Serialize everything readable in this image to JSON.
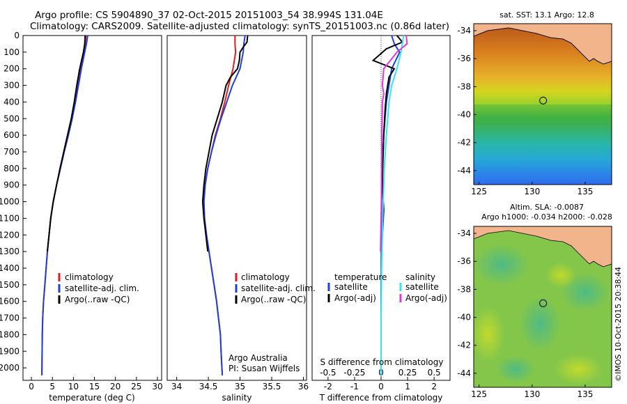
{
  "header": {
    "title_line1": "Argo profile: CS 5904890_37 02-Oct-2015 20151003_54 38.994S 131.04E",
    "title_line2": "Climatology: CARS2009. Satellite-adjusted climatology: synTS_20151003.nc (0.86d later)"
  },
  "credit": "©IMOS 10-Oct-2015 20:38:44",
  "colors": {
    "climatology": "#e41a1c",
    "satellite": "#1f3fd6",
    "argo": "#000000",
    "sat_temp": "#1f3fd6",
    "sat_sal": "#33e6f2",
    "argo_sal_adj": "#e733e0",
    "land": "#f2b48a"
  },
  "chart_data": [
    {
      "type": "line",
      "id": "temperature",
      "xlabel": "temperature (deg C)",
      "ylabel": "",
      "xlim": [
        -2,
        31
      ],
      "ylim": [
        2075,
        0
      ],
      "xticks": [
        "0",
        "5",
        "10",
        "15",
        "20",
        "25",
        "30"
      ],
      "yticks": [
        "0",
        "100",
        "200",
        "300",
        "400",
        "500",
        "600",
        "700",
        "800",
        "900",
        "1000",
        "1100",
        "1200",
        "1300",
        "1400",
        "1500",
        "1600",
        "1700",
        "1800",
        "1900",
        "2000"
      ],
      "legend": [
        "climatology",
        "satellite-adj. clim.",
        "Argo(..raw -QC)"
      ],
      "series": [
        {
          "name": "climatology",
          "color_key": "climatology",
          "x": [
            13.0,
            12.8,
            12.4,
            11.6,
            11.0,
            10.4,
            9.7,
            8.8,
            7.8,
            6.9,
            6.0,
            5.2,
            4.6,
            4.2,
            3.8,
            3.5,
            3.2,
            2.9,
            2.7,
            2.6,
            2.5
          ],
          "y": [
            0,
            50,
            100,
            200,
            300,
            400,
            500,
            600,
            700,
            800,
            900,
            1000,
            1100,
            1200,
            1300,
            1400,
            1500,
            1600,
            1700,
            1800,
            2045
          ]
        },
        {
          "name": "satellite-adj. clim.",
          "color_key": "satellite",
          "x": [
            13.4,
            13.1,
            12.7,
            11.9,
            11.2,
            10.5,
            9.7,
            8.8,
            7.8,
            6.9,
            6.0,
            5.2,
            4.6,
            4.2,
            3.8,
            3.5,
            3.2,
            2.9,
            2.7,
            2.6,
            2.5
          ],
          "y": [
            0,
            50,
            100,
            200,
            300,
            400,
            500,
            600,
            700,
            800,
            900,
            1000,
            1100,
            1200,
            1300,
            1400,
            1500,
            1600,
            1700,
            1800,
            2045
          ]
        },
        {
          "name": "Argo(..raw -QC)",
          "color_key": "argo",
          "x": [
            12.8,
            12.7,
            12.4,
            11.5,
            10.8,
            10.2,
            9.5,
            8.6,
            7.7,
            6.8,
            6.0,
            5.2,
            4.6,
            4.2,
            3.8
          ],
          "y": [
            0,
            50,
            100,
            200,
            300,
            400,
            500,
            600,
            700,
            800,
            900,
            1000,
            1100,
            1200,
            1300
          ]
        }
      ]
    },
    {
      "type": "line",
      "id": "salinity",
      "xlabel": "salinity",
      "xlim": [
        33.85,
        36.05
      ],
      "ylim": [
        2075,
        0
      ],
      "xticks": [
        "34",
        "34.5",
        "35",
        "35.5",
        "36"
      ],
      "legend": [
        "climatology",
        "satellite-adj. clim.",
        "Argo(..raw -QC)"
      ],
      "annotation": [
        "Argo Australia",
        "PI: Susan Wijffels"
      ],
      "series": [
        {
          "name": "climatology",
          "color_key": "climatology",
          "x": [
            34.92,
            34.92,
            34.93,
            34.89,
            34.82,
            34.76,
            34.69,
            34.61,
            34.55,
            34.49,
            34.45,
            34.43,
            34.44,
            34.47,
            34.51,
            34.55,
            34.59,
            34.63,
            34.66,
            34.69,
            34.7,
            34.72
          ],
          "y": [
            0,
            50,
            100,
            200,
            300,
            400,
            500,
            600,
            700,
            800,
            900,
            1000,
            1100,
            1200,
            1300,
            1400,
            1500,
            1600,
            1700,
            1800,
            1900,
            2045
          ]
        },
        {
          "name": "satellite-adj. clim.",
          "color_key": "satellite",
          "x": [
            35.08,
            35.06,
            35.05,
            35.0,
            34.88,
            34.79,
            34.7,
            34.62,
            34.55,
            34.49,
            34.45,
            34.43,
            34.44,
            34.47,
            34.51,
            34.55,
            34.59,
            34.63,
            34.66,
            34.69,
            34.7,
            34.72
          ],
          "y": [
            0,
            50,
            100,
            200,
            300,
            400,
            500,
            600,
            700,
            800,
            900,
            1000,
            1100,
            1200,
            1300,
            1400,
            1500,
            1600,
            1700,
            1800,
            1900,
            2045
          ]
        },
        {
          "name": "Argo(..raw -QC)",
          "color_key": "argo",
          "x": [
            35.12,
            35.11,
            35.05,
            35.0,
            34.99,
            34.96,
            34.85,
            34.78,
            34.72,
            34.64,
            34.56,
            34.51,
            34.46,
            34.43,
            34.41,
            34.42,
            34.43,
            34.46,
            34.49
          ],
          "y": [
            0,
            40,
            70,
            100,
            150,
            200,
            250,
            300,
            400,
            500,
            600,
            700,
            800,
            900,
            1000,
            1050,
            1100,
            1200,
            1300
          ]
        }
      ]
    },
    {
      "type": "line",
      "id": "difference",
      "xlabel": "T difference from climatology",
      "top_label": "S difference from climatology",
      "xlim": [
        -2.6,
        2.6
      ],
      "ylim": [
        2075,
        0
      ],
      "xticks": [
        "-2",
        "-1",
        "0",
        "1",
        "2"
      ],
      "secondary_xticks": [
        "-0.5",
        "-0.25",
        "0",
        "0.25",
        "0.5"
      ],
      "legend_left_title": "temperature",
      "legend_left": [
        "satellite",
        "Argo(-adj)"
      ],
      "legend_right_title": "salinity",
      "legend_right": [
        "satellite",
        "Argo(-adj)"
      ],
      "series": [
        {
          "name": "temperature satellite",
          "color_key": "sat_temp",
          "x": [
            0.4,
            0.5,
            0.7,
            0.4,
            0.3,
            0.2,
            0.15,
            0.1,
            0.08,
            0.05,
            0.03,
            0.02,
            0.01,
            0.0,
            0.0
          ],
          "y": [
            0,
            50,
            100,
            200,
            300,
            400,
            500,
            600,
            700,
            800,
            900,
            1000,
            1200,
            1600,
            2045
          ]
        },
        {
          "name": "temperature Argo(-adj)",
          "color_key": "argo",
          "x": [
            0.6,
            0.8,
            0.2,
            -0.3,
            0.5,
            0.3,
            0.2,
            0.15,
            0.1,
            0.06,
            0.05,
            0.1,
            0.05,
            0.0
          ],
          "y": [
            0,
            40,
            80,
            150,
            200,
            250,
            350,
            450,
            600,
            800,
            900,
            1050,
            1200,
            1300
          ]
        },
        {
          "name": "salinity satellite",
          "color_key": "sat_sal",
          "x": [
            0.85,
            0.8,
            0.75,
            0.6,
            0.4,
            0.3,
            0.25,
            0.2,
            0.12,
            0.08,
            0.05,
            0.02,
            0.0,
            0.0
          ],
          "y": [
            0,
            50,
            100,
            200,
            300,
            400,
            500,
            600,
            800,
            1000,
            1200,
            1400,
            1700,
            2045
          ]
        },
        {
          "name": "salinity Argo(-adj)",
          "color_key": "argo_sal_adj",
          "x": [
            0.95,
            0.98,
            0.6,
            0.1,
            0.05,
            0.1,
            0.05,
            0.04,
            0.03,
            0.02,
            0.01,
            0.0,
            -0.02
          ],
          "y": [
            0,
            50,
            100,
            200,
            300,
            350,
            400,
            500,
            600,
            800,
            1000,
            1100,
            1300
          ]
        }
      ]
    },
    {
      "type": "heatmap",
      "id": "sst_map",
      "title": "sat. SST: 13.1  Argo: 12.8",
      "xticks": [
        "125",
        "130",
        "135"
      ],
      "yticks": [
        "-34",
        "-36",
        "-38",
        "-40",
        "-42",
        "-44"
      ],
      "xlim": [
        124.5,
        137.5
      ],
      "ylim": [
        -45,
        -33.5
      ],
      "marker": {
        "lon": 131.04,
        "lat": -38.994
      }
    },
    {
      "type": "heatmap",
      "id": "sla_map",
      "title_line1": "Altim. SLA: -0.0087",
      "title_line2": "Argo h1000: -0.034 h2000: -0.028",
      "xticks": [
        "125",
        "130",
        "135"
      ],
      "yticks": [
        "-34",
        "-36",
        "-38",
        "-40",
        "-42",
        "-44"
      ],
      "xlim": [
        124.5,
        137.5
      ],
      "ylim": [
        -45,
        -33.5
      ],
      "marker": {
        "lon": 131.04,
        "lat": -38.994
      }
    }
  ]
}
